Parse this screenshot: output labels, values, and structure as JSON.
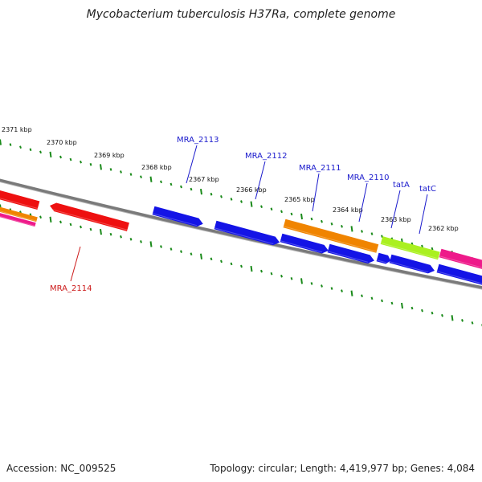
{
  "title": "Mycobacterium tuberculosis H37Ra, complete genome",
  "footer": {
    "accession": "Accession: NC_009525",
    "summary": "Topology: circular; Length: 4,419,977 bp; Genes: 4,084"
  },
  "colors": {
    "backbone": "#7a7a7a",
    "tick": "#1a8a1a",
    "gene_blue": "#1414e6",
    "gene_red": "#ee1010",
    "gene_orange": "#f08400",
    "gene_lime": "#aaf020",
    "gene_pink": "#ee1a8a",
    "label_blue": "#1a1acc",
    "label_red": "#cc1a1a"
  },
  "ticks": [
    {
      "kbp": 2371,
      "label": "2371 kbp"
    },
    {
      "kbp": 2370,
      "label": "2370 kbp"
    },
    {
      "kbp": 2369,
      "label": "2369 kbp"
    },
    {
      "kbp": 2368,
      "label": "2368 kbp"
    },
    {
      "kbp": 2367,
      "label": "2367 kbp"
    },
    {
      "kbp": 2366,
      "label": "2366 kbp"
    },
    {
      "kbp": 2365,
      "label": "2365 kbp"
    },
    {
      "kbp": 2364,
      "label": "2364 kbp"
    },
    {
      "kbp": 2363,
      "label": "2363 kbp"
    },
    {
      "kbp": 2362,
      "label": "2362 kbp"
    }
  ],
  "labels": [
    {
      "name": "MRA_2113",
      "color": "label_blue"
    },
    {
      "name": "MRA_2112",
      "color": "label_blue"
    },
    {
      "name": "MRA_2111",
      "color": "label_blue"
    },
    {
      "name": "MRA_2110",
      "color": "label_blue"
    },
    {
      "name": "tatA",
      "color": "label_blue"
    },
    {
      "name": "tatC",
      "color": "label_blue"
    },
    {
      "name": "MRA_2114",
      "color": "label_red"
    }
  ]
}
